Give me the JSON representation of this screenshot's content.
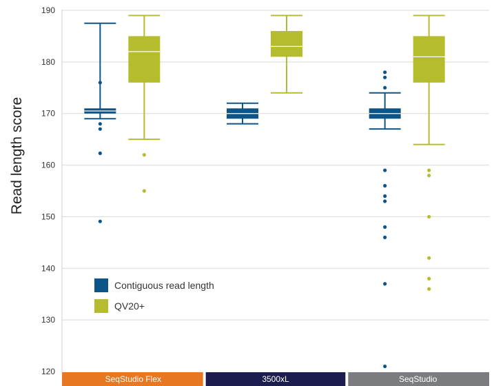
{
  "chart_data": {
    "type": "box",
    "ylabel": "Read length score",
    "xlabel": "",
    "ylim": [
      120,
      190
    ],
    "yticks": [
      120,
      130,
      140,
      150,
      160,
      170,
      180,
      190
    ],
    "grid": true,
    "legend_position": "lower-left",
    "categories": [
      {
        "label": "SeqStudio Flex",
        "color": "#e87722"
      },
      {
        "label": "3500xL",
        "color": "#1c1d4e"
      },
      {
        "label": "SeqStudio",
        "color": "#7a7c80"
      }
    ],
    "series": [
      {
        "name": "Contiguous read length",
        "color": "#0d5588",
        "boxes": [
          {
            "whisker_low": 169,
            "q1": 170,
            "median": 170.5,
            "q3": 171,
            "whisker_high": 187.5,
            "outliers": [
              176,
              168,
              167,
              162.3,
              149.1
            ]
          },
          {
            "whisker_low": 168,
            "q1": 169,
            "median": 170,
            "q3": 171,
            "whisker_high": 172,
            "outliers": []
          },
          {
            "whisker_low": 167,
            "q1": 169,
            "median": 170,
            "q3": 171,
            "whisker_high": 174,
            "outliers": [
              178,
              177,
              175,
              159,
              156,
              154,
              153,
              148,
              146,
              137,
              121
            ]
          }
        ]
      },
      {
        "name": "QV20+",
        "color": "#b5bd2e",
        "boxes": [
          {
            "whisker_low": 165,
            "q1": 176,
            "median": 182,
            "q3": 185,
            "whisker_high": 189,
            "outliers": [
              162,
              155
            ]
          },
          {
            "whisker_low": 174,
            "q1": 181,
            "median": 183,
            "q3": 186,
            "whisker_high": 189,
            "outliers": []
          },
          {
            "whisker_low": 164,
            "q1": 176,
            "median": 181,
            "q3": 185,
            "whisker_high": 189,
            "outliers": [
              159,
              158,
              150,
              142,
              138,
              136
            ]
          }
        ]
      }
    ]
  }
}
